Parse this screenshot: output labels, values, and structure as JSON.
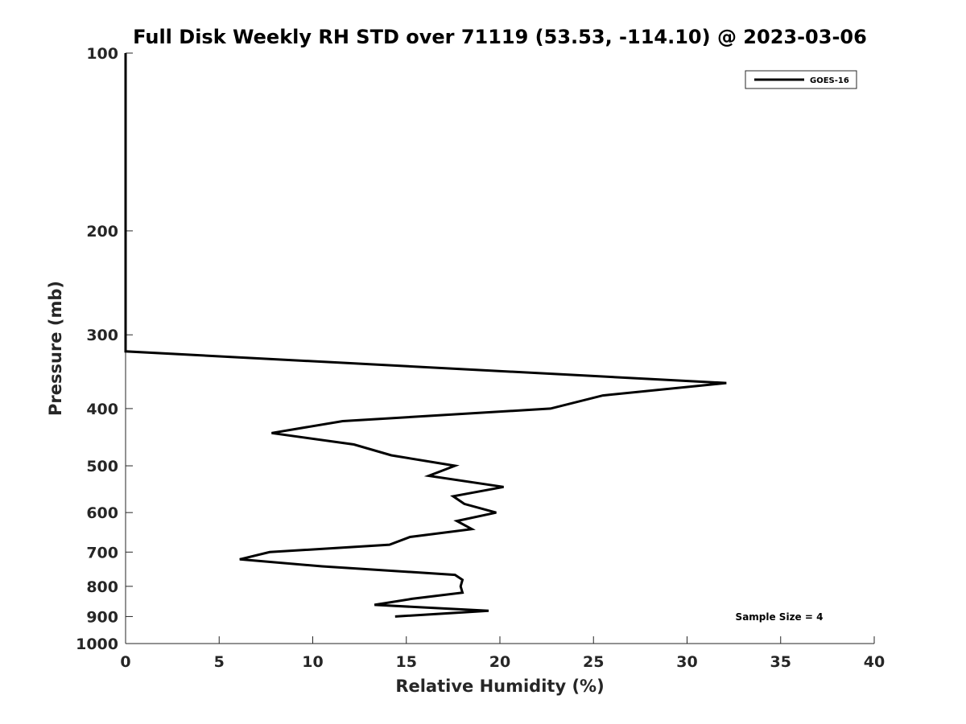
{
  "chart_data": {
    "type": "line",
    "title": "Full Disk Weekly RH STD over 71119 (53.53, -114.10) @ 2023-03-06",
    "xlabel": "Relative Humidity (%)",
    "ylabel": "Pressure (mb)",
    "xlim": [
      0,
      40
    ],
    "ylim": [
      1000,
      100
    ],
    "yscale": "log",
    "grid": false,
    "xticks": [
      0,
      5,
      10,
      15,
      20,
      25,
      30,
      35,
      40
    ],
    "yticks": [
      100,
      200,
      300,
      400,
      500,
      600,
      700,
      800,
      900,
      1000
    ],
    "legend": {
      "position": "top-right",
      "entries": [
        "GOES-16"
      ]
    },
    "annotation": "Sample Size = 4",
    "series": [
      {
        "name": "GOES-16",
        "color": "#000000",
        "points": [
          [
            0.0,
            100
          ],
          [
            0.0,
            150
          ],
          [
            0.0,
            200
          ],
          [
            0.0,
            250
          ],
          [
            0.0,
            300
          ],
          [
            0.0,
            320
          ],
          [
            32.1,
            362
          ],
          [
            25.5,
            380
          ],
          [
            22.7,
            400
          ],
          [
            11.6,
            420
          ],
          [
            7.8,
            440
          ],
          [
            12.2,
            460
          ],
          [
            14.2,
            480
          ],
          [
            17.6,
            500
          ],
          [
            16.2,
            520
          ],
          [
            20.2,
            543
          ],
          [
            17.5,
            563
          ],
          [
            18.1,
            580
          ],
          [
            19.8,
            600
          ],
          [
            17.7,
            620
          ],
          [
            18.5,
            640
          ],
          [
            15.2,
            660
          ],
          [
            14.1,
            680
          ],
          [
            7.7,
            700
          ],
          [
            6.1,
            720
          ],
          [
            10.5,
            740
          ],
          [
            17.6,
            765
          ],
          [
            18.0,
            780
          ],
          [
            17.9,
            800
          ],
          [
            18.0,
            820
          ],
          [
            15.3,
            840
          ],
          [
            13.3,
            860
          ],
          [
            19.4,
            880
          ],
          [
            14.4,
            900
          ]
        ]
      }
    ]
  }
}
